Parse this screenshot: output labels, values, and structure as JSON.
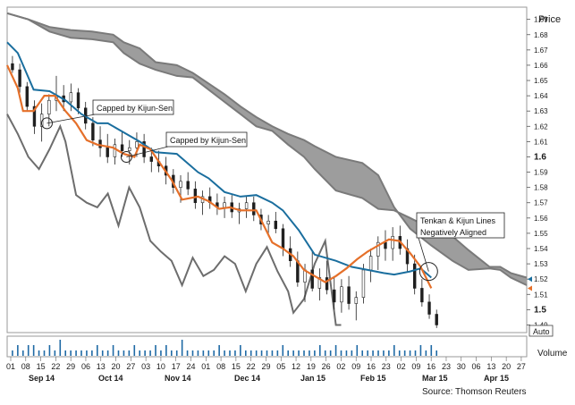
{
  "chart_data": {
    "type": "line",
    "subtype": "ichimoku-candlestick",
    "price_axis": {
      "title": "Price",
      "ticks": [
        "1.69",
        "1.68",
        "1.67",
        "1.66",
        "1.65",
        "1.64",
        "1.63",
        "1.62",
        "1.61",
        "1.6",
        "1.59",
        "1.58",
        "1.57",
        "1.56",
        "1.55",
        "1.54",
        "1.53",
        "1.52",
        "1.51",
        "1.5",
        "1.49"
      ],
      "bold_ticks": [
        "1.6",
        "1.5"
      ],
      "ylim": [
        1.485,
        1.698
      ],
      "scale_mode": "Auto"
    },
    "volume_axis": {
      "title": "Volume"
    },
    "x_axis": {
      "day_ticks": [
        "01",
        "08",
        "15",
        "22",
        "29",
        "06",
        "13",
        "20",
        "27",
        "03",
        "10",
        "17",
        "24",
        "01",
        "08",
        "15",
        "22",
        "29",
        "05",
        "12",
        "19",
        "26",
        "02",
        "09",
        "16",
        "23",
        "02",
        "09",
        "16",
        "23",
        "30",
        "06",
        "13",
        "20",
        "27"
      ],
      "month_labels": [
        "Sep 14",
        "Oct 14",
        "Nov 14",
        "Dec 14",
        "Jan 15",
        "Feb 15",
        "Mar 15",
        "Apr 15"
      ]
    },
    "colors": {
      "tenkan_sen": "#e5702a",
      "kijun_sen": "#1a6e9e",
      "chikou_span": "#6d6d6d",
      "senkou_span": "#7a7a7a",
      "cloud_fill": "#9d9d9d",
      "candles": "#1f1f1f"
    },
    "series": [
      {
        "key": "senkou_a",
        "points": [
          [
            0,
            1.694
          ],
          [
            4,
            1.69
          ],
          [
            8,
            1.682
          ],
          [
            12,
            1.678
          ],
          [
            16,
            1.677
          ],
          [
            20,
            1.675
          ],
          [
            22,
            1.668
          ],
          [
            25,
            1.661
          ],
          [
            28,
            1.657
          ],
          [
            32,
            1.653
          ],
          [
            35,
            1.652
          ],
          [
            38,
            1.644
          ],
          [
            41,
            1.636
          ],
          [
            44,
            1.628
          ],
          [
            47,
            1.62
          ],
          [
            50,
            1.617
          ],
          [
            53,
            1.608
          ],
          [
            56,
            1.6
          ],
          [
            58,
            1.592
          ],
          [
            62,
            1.578
          ],
          [
            67,
            1.573
          ],
          [
            70,
            1.566
          ],
          [
            73,
            1.565
          ],
          [
            76,
            1.56
          ],
          [
            80,
            1.553
          ],
          [
            84,
            1.548
          ],
          [
            87,
            1.539
          ],
          [
            91,
            1.528
          ],
          [
            93,
            1.528
          ],
          [
            95,
            1.524
          ],
          [
            98,
            1.521
          ]
        ]
      },
      {
        "key": "senkou_b",
        "points": [
          [
            0,
            1.694
          ],
          [
            4,
            1.69
          ],
          [
            8,
            1.685
          ],
          [
            12,
            1.683
          ],
          [
            16,
            1.682
          ],
          [
            20,
            1.68
          ],
          [
            22,
            1.675
          ],
          [
            25,
            1.671
          ],
          [
            28,
            1.662
          ],
          [
            32,
            1.66
          ],
          [
            35,
            1.655
          ],
          [
            38,
            1.648
          ],
          [
            41,
            1.641
          ],
          [
            44,
            1.633
          ],
          [
            47,
            1.626
          ],
          [
            50,
            1.62
          ],
          [
            53,
            1.615
          ],
          [
            56,
            1.611
          ],
          [
            58,
            1.607
          ],
          [
            62,
            1.6
          ],
          [
            67,
            1.596
          ],
          [
            70,
            1.588
          ],
          [
            73,
            1.567
          ],
          [
            76,
            1.553
          ],
          [
            80,
            1.542
          ],
          [
            84,
            1.532
          ],
          [
            87,
            1.526
          ],
          [
            91,
            1.527
          ],
          [
            93,
            1.526
          ],
          [
            95,
            1.521
          ],
          [
            98,
            1.516
          ]
        ]
      },
      {
        "key": "kijun_sen",
        "points": [
          [
            0,
            1.675
          ],
          [
            2,
            1.668
          ],
          [
            3,
            1.66
          ],
          [
            5,
            1.644
          ],
          [
            8,
            1.643
          ],
          [
            11,
            1.637
          ],
          [
            14,
            1.628
          ],
          [
            17,
            1.622
          ],
          [
            19,
            1.622
          ],
          [
            21,
            1.618
          ],
          [
            25,
            1.61
          ],
          [
            28,
            1.603
          ],
          [
            32,
            1.602
          ],
          [
            36,
            1.59
          ],
          [
            38,
            1.586
          ],
          [
            41,
            1.577
          ],
          [
            44,
            1.574
          ],
          [
            47,
            1.575
          ],
          [
            50,
            1.57
          ],
          [
            52,
            1.565
          ],
          [
            55,
            1.552
          ],
          [
            58,
            1.536
          ],
          [
            62,
            1.532
          ],
          [
            65,
            1.528
          ],
          [
            68,
            1.526
          ],
          [
            71,
            1.524
          ],
          [
            73,
            1.523
          ],
          [
            76,
            1.525
          ],
          [
            78,
            1.527
          ],
          [
            80,
            1.521
          ]
        ]
      },
      {
        "key": "tenkan_sen",
        "points": [
          [
            0,
            1.66
          ],
          [
            2,
            1.645
          ],
          [
            3,
            1.63
          ],
          [
            5,
            1.63
          ],
          [
            7,
            1.64
          ],
          [
            9,
            1.64
          ],
          [
            11,
            1.63
          ],
          [
            13,
            1.622
          ],
          [
            15,
            1.611
          ],
          [
            17,
            1.608
          ],
          [
            20,
            1.606
          ],
          [
            22,
            1.602
          ],
          [
            24,
            1.6
          ],
          [
            25,
            1.608
          ],
          [
            27,
            1.605
          ],
          [
            29,
            1.595
          ],
          [
            31,
            1.585
          ],
          [
            33,
            1.572
          ],
          [
            36,
            1.574
          ],
          [
            38,
            1.571
          ],
          [
            40,
            1.566
          ],
          [
            42,
            1.567
          ],
          [
            44,
            1.565
          ],
          [
            47,
            1.565
          ],
          [
            50,
            1.544
          ],
          [
            52,
            1.54
          ],
          [
            54,
            1.535
          ],
          [
            56,
            1.526
          ],
          [
            58,
            1.522
          ],
          [
            60,
            1.518
          ],
          [
            62,
            1.522
          ],
          [
            64,
            1.527
          ],
          [
            66,
            1.533
          ],
          [
            68,
            1.538
          ],
          [
            70,
            1.542
          ],
          [
            72,
            1.546
          ],
          [
            74,
            1.545
          ],
          [
            76,
            1.537
          ],
          [
            78,
            1.528
          ],
          [
            80,
            1.514
          ]
        ]
      },
      {
        "key": "chikou_span",
        "points": [
          [
            0,
            1.628
          ],
          [
            2,
            1.615
          ],
          [
            4,
            1.6
          ],
          [
            6,
            1.592
          ],
          [
            8,
            1.605
          ],
          [
            10,
            1.62
          ],
          [
            11,
            1.61
          ],
          [
            13,
            1.575
          ],
          [
            15,
            1.57
          ],
          [
            17,
            1.567
          ],
          [
            19,
            1.576
          ],
          [
            21,
            1.555
          ],
          [
            23,
            1.58
          ],
          [
            25,
            1.567
          ],
          [
            27,
            1.545
          ],
          [
            29,
            1.538
          ],
          [
            31,
            1.532
          ],
          [
            33,
            1.516
          ],
          [
            35,
            1.534
          ],
          [
            37,
            1.522
          ],
          [
            39,
            1.526
          ],
          [
            41,
            1.535
          ],
          [
            43,
            1.53
          ],
          [
            45,
            1.512
          ],
          [
            47,
            1.53
          ],
          [
            49,
            1.541
          ],
          [
            51,
            1.525
          ],
          [
            53,
            1.512
          ],
          [
            54,
            1.498
          ],
          [
            56,
            1.507
          ],
          [
            58,
            1.53
          ],
          [
            60,
            1.545
          ],
          [
            62,
            1.49
          ],
          [
            63,
            1.49
          ]
        ]
      }
    ],
    "candles": [
      {
        "o": 1.661,
        "h": 1.666,
        "l": 1.655,
        "c": 1.657
      },
      {
        "o": 1.657,
        "h": 1.661,
        "l": 1.642,
        "c": 1.646
      },
      {
        "o": 1.646,
        "h": 1.649,
        "l": 1.63,
        "c": 1.633
      },
      {
        "o": 1.633,
        "h": 1.637,
        "l": 1.615,
        "c": 1.62
      },
      {
        "o": 1.62,
        "h": 1.635,
        "l": 1.61,
        "c": 1.628
      },
      {
        "o": 1.628,
        "h": 1.641,
        "l": 1.62,
        "c": 1.637
      },
      {
        "o": 1.637,
        "h": 1.653,
        "l": 1.63,
        "c": 1.64
      },
      {
        "o": 1.64,
        "h": 1.647,
        "l": 1.63,
        "c": 1.636
      },
      {
        "o": 1.636,
        "h": 1.648,
        "l": 1.63,
        "c": 1.642
      },
      {
        "o": 1.642,
        "h": 1.645,
        "l": 1.628,
        "c": 1.632
      },
      {
        "o": 1.632,
        "h": 1.636,
        "l": 1.618,
        "c": 1.622
      },
      {
        "o": 1.622,
        "h": 1.626,
        "l": 1.607,
        "c": 1.611
      },
      {
        "o": 1.611,
        "h": 1.62,
        "l": 1.6,
        "c": 1.606
      },
      {
        "o": 1.606,
        "h": 1.615,
        "l": 1.596,
        "c": 1.6
      },
      {
        "o": 1.6,
        "h": 1.612,
        "l": 1.595,
        "c": 1.608
      },
      {
        "o": 1.608,
        "h": 1.617,
        "l": 1.6,
        "c": 1.604
      },
      {
        "o": 1.604,
        "h": 1.611,
        "l": 1.595,
        "c": 1.606
      },
      {
        "o": 1.606,
        "h": 1.616,
        "l": 1.6,
        "c": 1.61
      },
      {
        "o": 1.61,
        "h": 1.615,
        "l": 1.596,
        "c": 1.6
      },
      {
        "o": 1.6,
        "h": 1.606,
        "l": 1.59,
        "c": 1.597
      },
      {
        "o": 1.597,
        "h": 1.604,
        "l": 1.59,
        "c": 1.594
      },
      {
        "o": 1.594,
        "h": 1.6,
        "l": 1.582,
        "c": 1.588
      },
      {
        "o": 1.588,
        "h": 1.592,
        "l": 1.576,
        "c": 1.58
      },
      {
        "o": 1.58,
        "h": 1.588,
        "l": 1.57,
        "c": 1.584
      },
      {
        "o": 1.584,
        "h": 1.59,
        "l": 1.575,
        "c": 1.579
      },
      {
        "o": 1.579,
        "h": 1.584,
        "l": 1.566,
        "c": 1.57
      },
      {
        "o": 1.57,
        "h": 1.578,
        "l": 1.562,
        "c": 1.574
      },
      {
        "o": 1.574,
        "h": 1.58,
        "l": 1.566,
        "c": 1.57
      },
      {
        "o": 1.57,
        "h": 1.576,
        "l": 1.562,
        "c": 1.567
      },
      {
        "o": 1.567,
        "h": 1.574,
        "l": 1.56,
        "c": 1.57
      },
      {
        "o": 1.57,
        "h": 1.575,
        "l": 1.56,
        "c": 1.564
      },
      {
        "o": 1.564,
        "h": 1.57,
        "l": 1.556,
        "c": 1.566
      },
      {
        "o": 1.566,
        "h": 1.574,
        "l": 1.56,
        "c": 1.57
      },
      {
        "o": 1.57,
        "h": 1.574,
        "l": 1.558,
        "c": 1.562
      },
      {
        "o": 1.562,
        "h": 1.566,
        "l": 1.552,
        "c": 1.556
      },
      {
        "o": 1.556,
        "h": 1.562,
        "l": 1.548,
        "c": 1.558
      },
      {
        "o": 1.558,
        "h": 1.564,
        "l": 1.55,
        "c": 1.553
      },
      {
        "o": 1.553,
        "h": 1.556,
        "l": 1.535,
        "c": 1.54
      },
      {
        "o": 1.54,
        "h": 1.548,
        "l": 1.528,
        "c": 1.532
      },
      {
        "o": 1.532,
        "h": 1.538,
        "l": 1.515,
        "c": 1.518
      },
      {
        "o": 1.518,
        "h": 1.53,
        "l": 1.505,
        "c": 1.526
      },
      {
        "o": 1.526,
        "h": 1.538,
        "l": 1.512,
        "c": 1.514
      },
      {
        "o": 1.514,
        "h": 1.527,
        "l": 1.506,
        "c": 1.521
      },
      {
        "o": 1.521,
        "h": 1.532,
        "l": 1.51,
        "c": 1.513
      },
      {
        "o": 1.513,
        "h": 1.522,
        "l": 1.5,
        "c": 1.505
      },
      {
        "o": 1.505,
        "h": 1.52,
        "l": 1.498,
        "c": 1.515
      },
      {
        "o": 1.515,
        "h": 1.522,
        "l": 1.5,
        "c": 1.504
      },
      {
        "o": 1.504,
        "h": 1.512,
        "l": 1.493,
        "c": 1.508
      },
      {
        "o": 1.508,
        "h": 1.53,
        "l": 1.504,
        "c": 1.526
      },
      {
        "o": 1.526,
        "h": 1.54,
        "l": 1.518,
        "c": 1.535
      },
      {
        "o": 1.535,
        "h": 1.548,
        "l": 1.526,
        "c": 1.544
      },
      {
        "o": 1.544,
        "h": 1.552,
        "l": 1.532,
        "c": 1.54
      },
      {
        "o": 1.54,
        "h": 1.554,
        "l": 1.532,
        "c": 1.548
      },
      {
        "o": 1.548,
        "h": 1.555,
        "l": 1.536,
        "c": 1.54
      },
      {
        "o": 1.54,
        "h": 1.546,
        "l": 1.525,
        "c": 1.53
      },
      {
        "o": 1.53,
        "h": 1.536,
        "l": 1.51,
        "c": 1.514
      },
      {
        "o": 1.514,
        "h": 1.52,
        "l": 1.502,
        "c": 1.505
      },
      {
        "o": 1.505,
        "h": 1.51,
        "l": 1.494,
        "c": 1.497
      },
      {
        "o": 1.497,
        "h": 1.5,
        "l": 1.488,
        "c": 1.49
      }
    ],
    "candle_x_range": [
      1,
      81
    ],
    "volume": [
      1,
      2,
      1,
      2,
      2,
      1,
      1,
      2,
      1,
      3,
      1,
      1,
      1,
      1,
      1,
      1,
      2,
      1,
      1,
      2,
      1,
      1,
      1,
      2,
      1,
      1,
      1,
      2,
      1,
      2,
      1,
      1,
      3,
      1,
      1,
      1,
      1,
      1,
      1,
      2,
      1,
      1,
      1,
      2,
      1,
      1,
      1,
      1,
      1,
      1,
      1,
      2,
      1,
      1,
      1,
      1,
      1,
      1,
      2,
      1,
      1,
      2,
      1,
      1,
      1,
      2,
      1,
      1,
      1,
      1,
      1,
      1,
      2,
      1,
      1,
      1,
      1,
      2,
      1,
      2,
      1
    ],
    "annotations": [
      {
        "text": "Capped by Kijun-Sen",
        "marker_x": 7.5,
        "marker_y": 1.622
      },
      {
        "text": "Capped by Kijun-Sen",
        "marker_x": 22.5,
        "marker_y": 1.6
      },
      {
        "text": "Tenkan & Kijun Lines Negatively Aligned",
        "marker_x": 79.5,
        "marker_y": 1.525
      }
    ],
    "last_value_markers": [
      1.514,
      1.52
    ]
  },
  "source": "Source: Thomson Reuters"
}
